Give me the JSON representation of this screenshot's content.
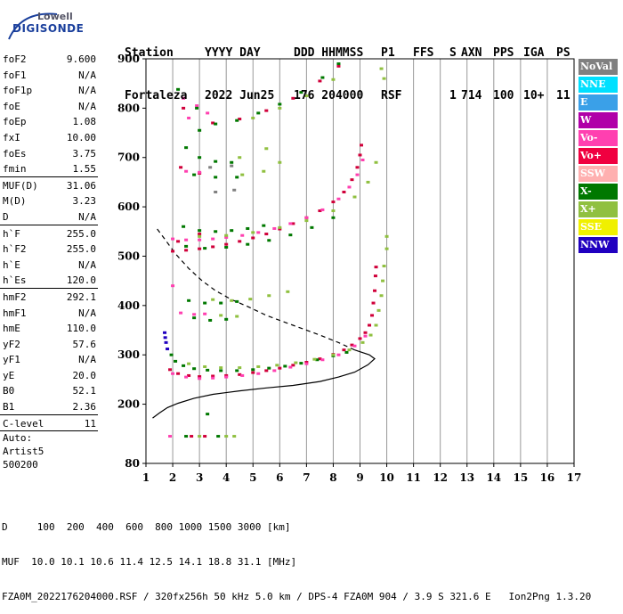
{
  "logo": {
    "line1": "Lowell",
    "line2": "DIGISONDE"
  },
  "header": {
    "row1": [
      "Station",
      "YYYY DAY",
      "DDD HHMMSS",
      "P1",
      "FFS",
      "S",
      "AXN",
      "PPS",
      "IGA",
      "PS"
    ],
    "row2": [
      "Fortaleza",
      "2022 Jun25",
      "176 204000",
      "RSF",
      "",
      "1",
      "714",
      "100",
      "10+",
      "11"
    ]
  },
  "parameters": [
    {
      "name": "foF2",
      "value": "9.600"
    },
    {
      "name": "foF1",
      "value": "N/A"
    },
    {
      "name": "foF1p",
      "value": "N/A"
    },
    {
      "name": "foE",
      "value": "N/A"
    },
    {
      "name": "foEp",
      "value": "1.08"
    },
    {
      "name": "fxI",
      "value": "10.00"
    },
    {
      "name": "foEs",
      "value": "3.75"
    },
    {
      "name": "fmin",
      "value": "1.55"
    },
    {
      "sep": true
    },
    {
      "name": "MUF(D)",
      "value": "31.06"
    },
    {
      "name": "M(D)",
      "value": "3.23"
    },
    {
      "name": "D",
      "value": "N/A"
    },
    {
      "sep": true
    },
    {
      "name": "h`F",
      "value": "255.0"
    },
    {
      "name": "h`F2",
      "value": "255.0"
    },
    {
      "name": "h`E",
      "value": "N/A"
    },
    {
      "name": "h`Es",
      "value": "120.0"
    },
    {
      "sep": true
    },
    {
      "name": "hmF2",
      "value": "292.1"
    },
    {
      "name": "hmF1",
      "value": "N/A"
    },
    {
      "name": "hmE",
      "value": "110.0"
    },
    {
      "name": "yF2",
      "value": "57.6"
    },
    {
      "name": "yF1",
      "value": "N/A"
    },
    {
      "name": "yE",
      "value": "20.0"
    },
    {
      "name": "B0",
      "value": "52.1"
    },
    {
      "name": "B1",
      "value": "2.36"
    },
    {
      "sep": true
    },
    {
      "name": "C-level",
      "value": "11"
    },
    {
      "sep": true
    }
  ],
  "auto": {
    "line1": "Auto:",
    "line2": "Artist5",
    "line3": "500200"
  },
  "legend": [
    {
      "label": "NoVal",
      "color": "#808080"
    },
    {
      "label": "NNE",
      "color": "#00e0ff"
    },
    {
      "label": "E",
      "color": "#3aa0e8"
    },
    {
      "label": "W",
      "color": "#b000a8"
    },
    {
      "label": "Vo-",
      "color": "#ff40b0"
    },
    {
      "label": "Vo+",
      "color": "#f00040"
    },
    {
      "label": "SSW",
      "color": "#ffb0b0"
    },
    {
      "label": "X-",
      "color": "#007800"
    },
    {
      "label": "X+",
      "color": "#90c040"
    },
    {
      "label": "SSE",
      "color": "#f0f000"
    },
    {
      "label": "NNW",
      "color": "#2000c0"
    }
  ],
  "footer": {
    "line1": "D     100  200  400  600  800 1000 1500 3000 [km]",
    "line2": "MUF  10.0 10.1 10.6 11.4 12.5 14.1 18.8 31.1 [MHz]",
    "line3": "FZA0M_2022176204000.RSF / 320fx256h 50 kHz 5.0 km / DPS-4 FZA0M 904 / 3.9 S 321.6 E   Ion2Png 1.3.20"
  },
  "chart_data": {
    "type": "scatter",
    "xlim": [
      1,
      17
    ],
    "ylim": [
      80,
      900
    ],
    "xticks": [
      1,
      2,
      3,
      4,
      5,
      6,
      7,
      8,
      9,
      10,
      11,
      12,
      13,
      14,
      15,
      16,
      17
    ],
    "yticks": [
      80,
      200,
      300,
      400,
      500,
      600,
      700,
      800,
      900
    ],
    "grid": "vertical",
    "legend_position": "right",
    "series": [
      {
        "name": "Vo+",
        "color": "#d0003a",
        "points": [
          [
            1.9,
            270
          ],
          [
            2.2,
            262
          ],
          [
            2.6,
            258
          ],
          [
            3.0,
            256
          ],
          [
            3.5,
            257
          ],
          [
            4.0,
            258
          ],
          [
            4.5,
            260
          ],
          [
            5.0,
            264
          ],
          [
            5.5,
            268
          ],
          [
            6.0,
            273
          ],
          [
            6.5,
            279
          ],
          [
            7.0,
            285
          ],
          [
            7.5,
            292
          ],
          [
            8.0,
            301
          ],
          [
            8.4,
            310
          ],
          [
            8.7,
            320
          ],
          [
            9.0,
            333
          ],
          [
            9.2,
            345
          ],
          [
            9.35,
            360
          ],
          [
            9.45,
            380
          ],
          [
            9.5,
            405
          ],
          [
            9.55,
            430
          ],
          [
            9.58,
            460
          ],
          [
            9.6,
            478
          ],
          [
            2.0,
            510
          ],
          [
            2.5,
            512
          ],
          [
            3.0,
            515
          ],
          [
            3.5,
            519
          ],
          [
            4.0,
            524
          ],
          [
            4.5,
            530
          ],
          [
            5.0,
            537
          ],
          [
            5.5,
            545
          ],
          [
            6.0,
            555
          ],
          [
            6.5,
            566
          ],
          [
            7.0,
            578
          ],
          [
            7.5,
            592
          ],
          [
            8.0,
            610
          ],
          [
            8.4,
            630
          ],
          [
            8.7,
            655
          ],
          [
            8.9,
            680
          ],
          [
            9.0,
            705
          ],
          [
            9.05,
            725
          ],
          [
            2.2,
            530
          ],
          [
            3.0,
            545
          ],
          [
            2.3,
            680
          ],
          [
            3.0,
            668
          ],
          [
            2.4,
            800
          ],
          [
            3.5,
            770
          ],
          [
            4.5,
            778
          ],
          [
            5.5,
            795
          ],
          [
            6.5,
            820
          ],
          [
            7.5,
            855
          ],
          [
            8.2,
            885
          ],
          [
            3.2,
            135
          ],
          [
            2.7,
            135
          ]
        ]
      },
      {
        "name": "Vo-",
        "color": "#ff40b0",
        "points": [
          [
            2.0,
            262
          ],
          [
            2.5,
            255
          ],
          [
            3.0,
            252
          ],
          [
            3.5,
            253
          ],
          [
            4.0,
            255
          ],
          [
            4.6,
            258
          ],
          [
            5.2,
            262
          ],
          [
            5.8,
            268
          ],
          [
            6.4,
            275
          ],
          [
            7.0,
            282
          ],
          [
            7.6,
            290
          ],
          [
            8.2,
            300
          ],
          [
            8.8,
            318
          ],
          [
            9.2,
            338
          ],
          [
            2.0,
            535
          ],
          [
            2.5,
            533
          ],
          [
            3.0,
            533
          ],
          [
            3.5,
            535
          ],
          [
            4.0,
            538
          ],
          [
            4.6,
            542
          ],
          [
            5.2,
            548
          ],
          [
            5.8,
            556
          ],
          [
            6.4,
            566
          ],
          [
            7.0,
            578
          ],
          [
            7.6,
            594
          ],
          [
            8.2,
            616
          ],
          [
            8.6,
            640
          ],
          [
            8.9,
            665
          ],
          [
            9.1,
            695
          ],
          [
            2.3,
            385
          ],
          [
            2.8,
            382
          ],
          [
            3.2,
            383
          ],
          [
            2.5,
            672
          ],
          [
            3.0,
            670
          ],
          [
            2.6,
            780
          ],
          [
            3.3,
            790
          ],
          [
            2.4,
            820
          ],
          [
            2.9,
            805
          ],
          [
            2.0,
            440
          ],
          [
            1.9,
            135
          ]
        ]
      },
      {
        "name": "X-",
        "color": "#007800",
        "points": [
          [
            1.95,
            300
          ],
          [
            2.1,
            287
          ],
          [
            2.4,
            278
          ],
          [
            2.8,
            272
          ],
          [
            3.3,
            269
          ],
          [
            3.8,
            268
          ],
          [
            4.4,
            268
          ],
          [
            5.0,
            270
          ],
          [
            5.6,
            273
          ],
          [
            6.2,
            277
          ],
          [
            6.8,
            283
          ],
          [
            7.4,
            290
          ],
          [
            8.0,
            298
          ],
          [
            8.5,
            305
          ],
          [
            2.4,
            560
          ],
          [
            3.0,
            552
          ],
          [
            3.6,
            550
          ],
          [
            4.2,
            552
          ],
          [
            4.8,
            556
          ],
          [
            5.4,
            562
          ],
          [
            2.5,
            520
          ],
          [
            3.2,
            516
          ],
          [
            4.0,
            518
          ],
          [
            4.8,
            524
          ],
          [
            5.6,
            532
          ],
          [
            6.4,
            543
          ],
          [
            7.2,
            558
          ],
          [
            8.0,
            578
          ],
          [
            2.6,
            410
          ],
          [
            3.2,
            405
          ],
          [
            3.8,
            405
          ],
          [
            4.4,
            408
          ],
          [
            2.8,
            375
          ],
          [
            3.4,
            370
          ],
          [
            4.0,
            372
          ],
          [
            2.5,
            720
          ],
          [
            3.0,
            700
          ],
          [
            3.6,
            692
          ],
          [
            4.2,
            690
          ],
          [
            2.8,
            665
          ],
          [
            3.6,
            660
          ],
          [
            4.4,
            660
          ],
          [
            3.0,
            755
          ],
          [
            3.6,
            768
          ],
          [
            4.4,
            775
          ],
          [
            5.2,
            790
          ],
          [
            6.0,
            808
          ],
          [
            6.8,
            832
          ],
          [
            7.6,
            862
          ],
          [
            8.2,
            890
          ],
          [
            2.2,
            838
          ],
          [
            2.9,
            800
          ],
          [
            3.3,
            180
          ],
          [
            2.5,
            135
          ],
          [
            3.7,
            135
          ]
        ]
      },
      {
        "name": "X+",
        "color": "#90c040",
        "points": [
          [
            2.6,
            282
          ],
          [
            3.2,
            276
          ],
          [
            3.8,
            274
          ],
          [
            4.5,
            274
          ],
          [
            5.2,
            276
          ],
          [
            5.9,
            279
          ],
          [
            6.6,
            284
          ],
          [
            7.3,
            291
          ],
          [
            8.0,
            300
          ],
          [
            8.6,
            310
          ],
          [
            9.1,
            325
          ],
          [
            9.4,
            340
          ],
          [
            9.6,
            360
          ],
          [
            9.7,
            390
          ],
          [
            9.8,
            420
          ],
          [
            9.85,
            450
          ],
          [
            9.9,
            480
          ],
          [
            3.0,
            540
          ],
          [
            4.0,
            542
          ],
          [
            5.0,
            548
          ],
          [
            6.0,
            558
          ],
          [
            7.0,
            572
          ],
          [
            8.0,
            592
          ],
          [
            8.8,
            620
          ],
          [
            9.3,
            650
          ],
          [
            9.6,
            690
          ],
          [
            3.5,
            412
          ],
          [
            4.2,
            410
          ],
          [
            4.9,
            413
          ],
          [
            5.6,
            420
          ],
          [
            6.3,
            428
          ],
          [
            3.8,
            380
          ],
          [
            4.4,
            378
          ],
          [
            4.5,
            700
          ],
          [
            5.5,
            718
          ],
          [
            4.6,
            665
          ],
          [
            5.4,
            672
          ],
          [
            6.0,
            690
          ],
          [
            5.0,
            780
          ],
          [
            6.0,
            800
          ],
          [
            7.0,
            825
          ],
          [
            8.0,
            858
          ],
          [
            3.0,
            135
          ],
          [
            4.0,
            135
          ],
          [
            4.3,
            135
          ],
          [
            10.0,
            515
          ],
          [
            10.0,
            540
          ],
          [
            9.9,
            860
          ],
          [
            9.8,
            880
          ]
        ]
      },
      {
        "name": "NNW",
        "color": "#2000c0",
        "points": [
          [
            1.7,
            345
          ],
          [
            1.72,
            335
          ],
          [
            1.75,
            325
          ],
          [
            1.8,
            312
          ]
        ]
      },
      {
        "name": "NoVal",
        "color": "#808080",
        "points": [
          [
            3.4,
            680
          ],
          [
            4.2,
            683
          ],
          [
            3.6,
            630
          ],
          [
            4.3,
            634
          ]
        ]
      }
    ],
    "lines": [
      {
        "name": "profile",
        "style": "solid",
        "points": [
          [
            1.25,
            172
          ],
          [
            1.5,
            182
          ],
          [
            1.8,
            193
          ],
          [
            2.2,
            202
          ],
          [
            2.8,
            212
          ],
          [
            3.5,
            220
          ],
          [
            4.5,
            227
          ],
          [
            5.5,
            233
          ],
          [
            6.5,
            238
          ],
          [
            7.5,
            246
          ],
          [
            8.2,
            255
          ],
          [
            8.8,
            265
          ],
          [
            9.3,
            280
          ],
          [
            9.55,
            292
          ],
          [
            9.35,
            300
          ],
          [
            8.8,
            310
          ]
        ]
      },
      {
        "name": "extrapolation",
        "style": "dashed",
        "points": [
          [
            8.8,
            310
          ],
          [
            8.2,
            325
          ],
          [
            7.5,
            340
          ],
          [
            6.5,
            360
          ],
          [
            5.5,
            380
          ],
          [
            4.8,
            398
          ],
          [
            4.2,
            412
          ],
          [
            3.6,
            430
          ],
          [
            3.1,
            450
          ],
          [
            2.6,
            475
          ],
          [
            2.1,
            505
          ],
          [
            1.7,
            535
          ],
          [
            1.35,
            560
          ]
        ]
      }
    ]
  }
}
